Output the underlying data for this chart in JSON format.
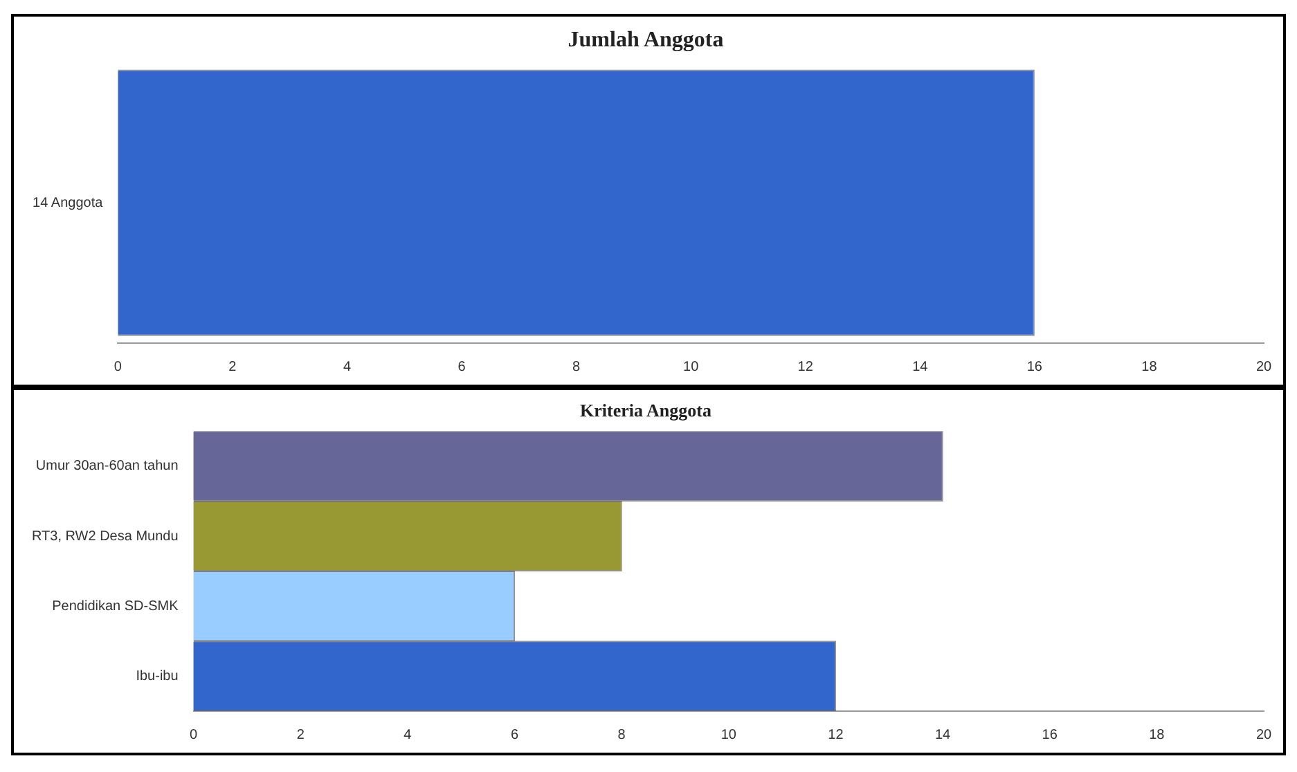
{
  "chart_data": [
    {
      "type": "bar",
      "orientation": "horizontal",
      "title": "Jumlah Anggota",
      "categories": [
        "14 Anggota"
      ],
      "values": [
        16
      ],
      "color": "#3366cc",
      "xlim": [
        0,
        20
      ],
      "xticks": [
        0,
        2,
        4,
        6,
        8,
        10,
        12,
        14,
        16,
        18,
        20
      ],
      "grid": false,
      "legend": false
    },
    {
      "type": "bar",
      "orientation": "horizontal",
      "title": "Kriteria Anggota",
      "categories": [
        "Umur 30an-60an tahun",
        "RT3, RW2 Desa Mundu",
        "Pendidikan SD-SMK",
        "Ibu-ibu"
      ],
      "values": [
        14,
        8,
        6,
        12
      ],
      "colors": [
        "#666699",
        "#999933",
        "#99ccff",
        "#3366cc"
      ],
      "xlim": [
        0,
        20
      ],
      "xticks": [
        0,
        2,
        4,
        6,
        8,
        10,
        12,
        14,
        16,
        18,
        20
      ],
      "grid": false,
      "legend": false
    }
  ]
}
